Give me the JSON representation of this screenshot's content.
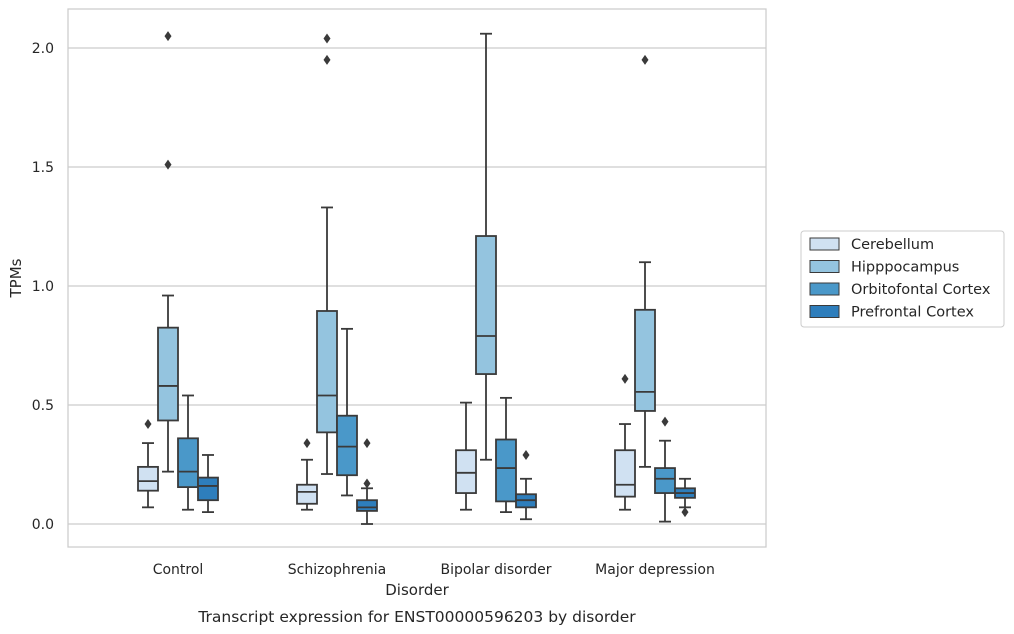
{
  "chart_data": {
    "type": "box",
    "title": "",
    "caption": "Transcript expression for ENST00000596203 by disorder",
    "xlabel": "Disorder",
    "ylabel": "TPMs",
    "ylim": [
      -0.1,
      2.17
    ],
    "yticks": [
      0.0,
      0.5,
      1.0,
      1.5,
      2.0
    ],
    "ytick_labels": [
      "0.0",
      "0.5",
      "1.0",
      "1.5",
      "2.0"
    ],
    "grid": "horizontal",
    "legend_position": "right",
    "categories": [
      "Control",
      "Schizophrenia",
      "Bipolar disorder",
      "Major depression"
    ],
    "series": [
      {
        "name": "Cerebellum",
        "color": "#d0e1f2",
        "boxes": [
          {
            "whislo": 0.07,
            "q1": 0.14,
            "med": 0.18,
            "q3": 0.24,
            "whishi": 0.34,
            "fliers": [
              0.42
            ]
          },
          {
            "whislo": 0.06,
            "q1": 0.085,
            "med": 0.135,
            "q3": 0.165,
            "whishi": 0.27,
            "fliers": [
              0.34
            ]
          },
          {
            "whislo": 0.06,
            "q1": 0.13,
            "med": 0.215,
            "q3": 0.31,
            "whishi": 0.51,
            "fliers": []
          },
          {
            "whislo": 0.06,
            "q1": 0.115,
            "med": 0.165,
            "q3": 0.31,
            "whishi": 0.42,
            "fliers": [
              0.61
            ]
          }
        ]
      },
      {
        "name": "Hipppocampus",
        "color": "#94c4df",
        "boxes": [
          {
            "whislo": 0.22,
            "q1": 0.435,
            "med": 0.58,
            "q3": 0.825,
            "whishi": 0.96,
            "fliers": [
              2.05,
              1.51
            ]
          },
          {
            "whislo": 0.21,
            "q1": 0.385,
            "med": 0.54,
            "q3": 0.895,
            "whishi": 1.33,
            "fliers": [
              2.04,
              1.95
            ]
          },
          {
            "whislo": 0.27,
            "q1": 0.63,
            "med": 0.79,
            "q3": 1.21,
            "whishi": 2.06,
            "fliers": []
          },
          {
            "whislo": 0.24,
            "q1": 0.475,
            "med": 0.555,
            "q3": 0.9,
            "whishi": 1.1,
            "fliers": [
              1.95
            ]
          }
        ]
      },
      {
        "name": "Orbitofontal Cortex",
        "color": "#4a98c9",
        "boxes": [
          {
            "whislo": 0.06,
            "q1": 0.155,
            "med": 0.22,
            "q3": 0.36,
            "whishi": 0.54,
            "fliers": []
          },
          {
            "whislo": 0.12,
            "q1": 0.205,
            "med": 0.325,
            "q3": 0.455,
            "whishi": 0.82,
            "fliers": []
          },
          {
            "whislo": 0.05,
            "q1": 0.095,
            "med": 0.235,
            "q3": 0.355,
            "whishi": 0.53,
            "fliers": []
          },
          {
            "whislo": 0.01,
            "q1": 0.13,
            "med": 0.19,
            "q3": 0.235,
            "whishi": 0.35,
            "fliers": [
              0.43
            ]
          }
        ]
      },
      {
        "name": "Prefrontal Cortex",
        "color": "#2e7ebc",
        "boxes": [
          {
            "whislo": 0.05,
            "q1": 0.1,
            "med": 0.16,
            "q3": 0.195,
            "whishi": 0.29,
            "fliers": []
          },
          {
            "whislo": 0.0,
            "q1": 0.055,
            "med": 0.07,
            "q3": 0.1,
            "whishi": 0.15,
            "fliers": [
              0.17,
              0.34
            ]
          },
          {
            "whislo": 0.02,
            "q1": 0.07,
            "med": 0.1,
            "q3": 0.125,
            "whishi": 0.19,
            "fliers": [
              0.29
            ]
          },
          {
            "whislo": 0.07,
            "q1": 0.11,
            "med": 0.13,
            "q3": 0.15,
            "whishi": 0.19,
            "fliers": [
              0.05
            ]
          }
        ]
      }
    ]
  }
}
